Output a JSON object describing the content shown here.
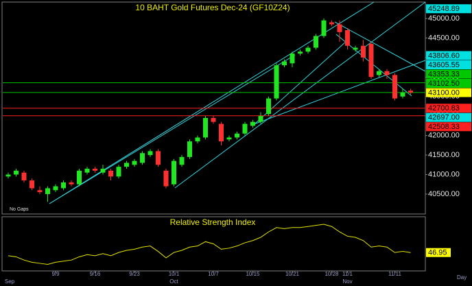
{
  "chart_data": {
    "type": "candlestick",
    "title": "10 BAHT  Gold Futures Dec-24  (GF10Z24)",
    "note": "No Gaps",
    "x_unit": "Day",
    "categories": [
      null,
      null,
      null,
      null,
      null,
      null,
      "9/9",
      null,
      null,
      null,
      null,
      "9/16",
      null,
      null,
      null,
      null,
      "9/23",
      null,
      null,
      null,
      null,
      "10/1",
      null,
      null,
      null,
      null,
      "10/7",
      null,
      null,
      null,
      null,
      "10/15",
      null,
      null,
      null,
      null,
      "10/21",
      null,
      null,
      null,
      null,
      "10/28",
      null,
      "11/1",
      null,
      null,
      null,
      null,
      null,
      "11/11",
      null,
      null
    ],
    "months": [
      "Sep",
      null,
      null,
      null,
      null,
      null,
      null,
      null,
      null,
      null,
      null,
      null,
      null,
      null,
      null,
      null,
      null,
      null,
      null,
      null,
      null,
      "Oct",
      null,
      null,
      null,
      null,
      null,
      null,
      null,
      null,
      null,
      null,
      null,
      null,
      null,
      null,
      null,
      null,
      null,
      null,
      null,
      null,
      null,
      "Nov",
      null,
      null,
      null,
      null,
      null,
      null,
      null,
      null
    ],
    "open": [
      40950,
      41000,
      41050,
      40850,
      40600,
      40500,
      40600,
      40650,
      40800,
      40750,
      41050,
      41150,
      41050,
      41100,
      40950,
      41200,
      41250,
      41300,
      41500,
      41600,
      41100,
      40750,
      41250,
      41450,
      41850,
      41950,
      42450,
      42300,
      41900,
      41950,
      42050,
      42250,
      42350,
      42550,
      42950,
      43800,
      43850,
      44100,
      44150,
      44250,
      44550,
      44900,
      44850,
      44700,
      44200,
      44300,
      44350,
      43550,
      43650,
      43550,
      43000,
      43150
    ],
    "high": [
      41050,
      41150,
      41100,
      40900,
      40700,
      40700,
      40750,
      40850,
      40850,
      41150,
      41200,
      41200,
      41250,
      41150,
      41250,
      41350,
      41400,
      41600,
      41650,
      41650,
      41150,
      41400,
      41500,
      41900,
      42000,
      42500,
      42500,
      42350,
      42000,
      42100,
      42350,
      42400,
      42600,
      43000,
      43850,
      43950,
      44150,
      44200,
      44300,
      44600,
      45000,
      44950,
      44950,
      44750,
      44300,
      44450,
      44400,
      43700,
      43700,
      43600,
      43200,
      43200
    ],
    "low": [
      40900,
      40950,
      40800,
      40600,
      40500,
      40300,
      40550,
      40600,
      40700,
      40700,
      41000,
      41050,
      41000,
      40850,
      40900,
      41150,
      41200,
      41250,
      41450,
      41200,
      40650,
      40700,
      41200,
      41400,
      41800,
      41900,
      42300,
      41750,
      41850,
      41900,
      42000,
      42200,
      42300,
      42500,
      42900,
      43750,
      43750,
      44050,
      44100,
      44200,
      44500,
      44800,
      44400,
      44200,
      44150,
      43900,
      43450,
      43500,
      43450,
      42900,
      42950,
      43050
    ],
    "close": [
      41000,
      41100,
      40850,
      40650,
      40550,
      40650,
      40700,
      40800,
      40750,
      41100,
      41150,
      41100,
      41150,
      40950,
      41200,
      41300,
      41350,
      41550,
      41600,
      41250,
      40700,
      41350,
      41450,
      41850,
      41950,
      42450,
      42350,
      41850,
      41950,
      42050,
      42300,
      42350,
      42500,
      42950,
      43800,
      43900,
      44100,
      44150,
      44250,
      44550,
      44950,
      44850,
      44650,
      44300,
      44250,
      44000,
      43500,
      43650,
      43550,
      42950,
      43100,
      43100
    ],
    "up_color": "#22e622",
    "down_color": "#ff3030",
    "ylim": [
      39990,
      45420
    ],
    "yticks": [
      {
        "value": 45000,
        "label": "45000.00"
      },
      {
        "value": 44500,
        "label": "44500.00"
      },
      {
        "value": 44000,
        "label": "44000.00"
      },
      {
        "value": 43500,
        "label": "43500.00"
      },
      {
        "value": 43000,
        "label": "43000.00"
      },
      {
        "value": 42500,
        "label": "42500.00"
      },
      {
        "value": 42000,
        "label": "42000.00"
      },
      {
        "value": 41500,
        "label": "41500.00"
      },
      {
        "value": 41000,
        "label": "41000.00"
      },
      {
        "value": 40500,
        "label": "40500.00"
      }
    ],
    "levels": [
      {
        "value": 45248.89,
        "label": "45248.89",
        "color": "#00e0e0",
        "line": false
      },
      {
        "value": 43806.6,
        "label": "43806.60",
        "color": "#00e0e0",
        "line": false
      },
      {
        "value": 43605.55,
        "label": "43605.55",
        "color": "#00e0e0",
        "line": false
      },
      {
        "value": 43353.33,
        "label": "43353.33",
        "color": "#00c800",
        "line": true
      },
      {
        "value": 43102.5,
        "label": "43102.50",
        "color": "#00c800",
        "line": true
      },
      {
        "value": 43100,
        "label": "43100.00",
        "color": "#ffff00",
        "line": false,
        "current": true
      },
      {
        "value": 42700.83,
        "label": "42700.83",
        "color": "#ff2020",
        "line": true
      },
      {
        "value": 42697,
        "label": "42697.00",
        "color": "#00e0e0",
        "line": false
      },
      {
        "value": 42508.33,
        "label": "42508.33",
        "color": "#ff2020",
        "line": true
      }
    ],
    "rsi": {
      "name": "Relative Strength Index",
      "color": "#e8e800",
      "ylim": [
        30,
        80
      ],
      "values": [
        44,
        43,
        40,
        38,
        37,
        36,
        38,
        39,
        40,
        43,
        45,
        44,
        46,
        44,
        47,
        49,
        50,
        52,
        53,
        48,
        42,
        47,
        49,
        52,
        53,
        57,
        55,
        50,
        51,
        53,
        56,
        58,
        61,
        66,
        70,
        69,
        70,
        70,
        71,
        72,
        73,
        71,
        66,
        62,
        61,
        58,
        52,
        53,
        52,
        47,
        48,
        46.95
      ]
    }
  }
}
